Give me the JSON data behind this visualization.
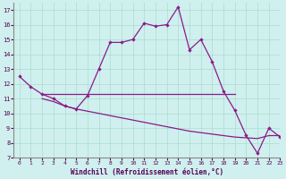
{
  "bg_color": "#cff0ee",
  "line_color": "#8b1a8b",
  "grid_color": "#aaddcc",
  "xlim": [
    -0.5,
    23
  ],
  "ylim": [
    7,
    17.5
  ],
  "xticks": [
    0,
    1,
    2,
    3,
    4,
    5,
    6,
    7,
    8,
    9,
    10,
    11,
    12,
    13,
    14,
    15,
    16,
    17,
    18,
    19,
    20,
    21,
    22,
    23
  ],
  "yticks": [
    7,
    8,
    9,
    10,
    11,
    12,
    13,
    14,
    15,
    16,
    17
  ],
  "xlabel": "Windchill (Refroidissement éolien,°C)",
  "curve1_x": [
    0,
    1,
    2,
    3,
    4,
    5,
    6,
    7,
    8,
    9,
    10,
    11,
    12,
    13,
    14,
    15,
    16,
    17,
    18,
    19,
    20,
    21,
    22,
    23
  ],
  "curve1_y": [
    12.5,
    11.8,
    11.3,
    11.0,
    10.5,
    10.3,
    11.2,
    13.0,
    14.8,
    14.8,
    15.0,
    16.1,
    15.9,
    16.0,
    17.2,
    14.3,
    15.0,
    13.5,
    11.5,
    10.2,
    8.5,
    7.3,
    9.0,
    8.4
  ],
  "curve2_x": [
    2,
    19
  ],
  "curve2_y": [
    11.3,
    11.3
  ],
  "curve3_x": [
    2,
    3,
    4,
    5,
    6,
    7,
    8,
    9,
    10,
    11,
    12,
    13,
    14,
    15,
    16,
    17,
    18,
    19,
    20,
    21,
    22,
    23
  ],
  "curve3_y": [
    11.0,
    10.8,
    10.5,
    10.3,
    10.15,
    10.0,
    9.85,
    9.7,
    9.55,
    9.4,
    9.25,
    9.1,
    8.95,
    8.8,
    8.7,
    8.6,
    8.5,
    8.4,
    8.35,
    8.3,
    8.5,
    8.5
  ]
}
